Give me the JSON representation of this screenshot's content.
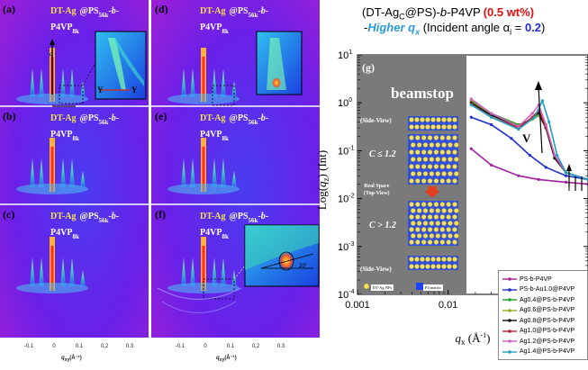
{
  "gisaxs": {
    "panels": [
      {
        "id": "a",
        "label": "(a)",
        "line1": "DT-Ag",
        "line1b": "@PS",
        "line2": "P4VP"
      },
      {
        "id": "b",
        "label": "(b)",
        "line1": "DT-Ag",
        "line1b": "@PS",
        "line2": "P4VP"
      },
      {
        "id": "c",
        "label": "(c)",
        "line1": "DT-Ag",
        "line1b": "@PS",
        "line2": "P4VP"
      },
      {
        "id": "d",
        "label": "(d)",
        "line1": "DT-Ag",
        "line1b": "@PS",
        "line2": "P4VP"
      },
      {
        "id": "e",
        "label": "(e)",
        "line1": "DT-Ag",
        "line1b": "@PS",
        "line2": "P4VP"
      },
      {
        "id": "f",
        "label": "(f)",
        "line1": "DT-Ag",
        "line1b": "@PS",
        "line2": "P4VP"
      }
    ],
    "sub1": "56k",
    "sub2": "8k",
    "inset_a_labels": [
      "Y",
      "Y"
    ],
    "inset_f_angle": "20°",
    "x_ticks": [
      "-0.1",
      "0",
      "0.1",
      "0.2",
      "0.3"
    ],
    "x_axis_label": "q",
    "x_axis_sub": "xy",
    "x_axis_unit": "(Å⁻¹)"
  },
  "schematic": {
    "label": "(g)",
    "beamstop": "beamstop",
    "side_view_top": "(Side-View)",
    "c_le": "C ≤ 1.2",
    "real_space_1": "Real Space",
    "real_space_2": "(Top-View)",
    "c_gt": "C > 1.2",
    "side_view_bottom": "(Side-View)",
    "legend_np": "DT-Ag NPs",
    "legend_matrix": "P4 matrix"
  },
  "plot_title": {
    "line1_pre": "(DT-Ag",
    "line1_sub": "C",
    "line1_mid": "@PS)-",
    "line1_b": "b",
    "line1_post": "-P4VP",
    "line1_pct": "(0.5 wt%)",
    "line2_dash": "-",
    "line2_higher": "Higher q",
    "line2_higher_sub": "x",
    "line2_rest": "(Incident angle α",
    "line2_rest_sub": "i",
    "line2_eq": " = ",
    "line2_val": "0.2",
    "line2_close": ")"
  },
  "annotations": {
    "v_label": "V"
  },
  "chart_data": {
    "type": "line",
    "title": "",
    "xlabel": "q_x (Å⁻¹)",
    "ylabel": "Log(q_z) (Int)",
    "xscale": "log",
    "yscale": "log",
    "xlim": [
      0.001,
      0.35
    ],
    "ylim": [
      0.0001,
      10
    ],
    "x_ticks": [
      "0.001",
      "0.01",
      "0.1"
    ],
    "y_ticks": [
      "10",
      "10",
      "10",
      "10",
      "10",
      "10"
    ],
    "y_tick_exps": [
      "1",
      "0",
      "-1",
      "-2",
      "-3",
      "-4"
    ],
    "legend_position": "bottom-right",
    "series": [
      {
        "name": "PS-b-P4VP",
        "color": "#a020a0",
        "points": [
          [
            0.018,
            0.11
          ],
          [
            0.03,
            0.05
          ],
          [
            0.06,
            0.03
          ],
          [
            0.1,
            0.025
          ],
          [
            0.2,
            0.022
          ],
          [
            0.35,
            0.02
          ]
        ]
      },
      {
        "name": "PS-b-Au1.0@P4VP",
        "color": "#2030d0",
        "points": [
          [
            0.018,
            0.5
          ],
          [
            0.03,
            0.35
          ],
          [
            0.05,
            0.18
          ],
          [
            0.08,
            0.08
          ],
          [
            0.12,
            0.045
          ],
          [
            0.2,
            0.03
          ],
          [
            0.35,
            0.025
          ]
        ]
      },
      {
        "name": "Ag0.4@PS-b-P4VP",
        "color": "#20a020",
        "points": [
          [
            0.018,
            1.1
          ],
          [
            0.03,
            0.6
          ],
          [
            0.06,
            0.35
          ],
          [
            0.085,
            0.45
          ],
          [
            0.1,
            0.55
          ],
          [
            0.12,
            0.3
          ],
          [
            0.15,
            0.07
          ],
          [
            0.2,
            0.035
          ],
          [
            0.35,
            0.025
          ]
        ]
      },
      {
        "name": "Ag0.6@PS-b-P4VP",
        "color": "#90b020",
        "points": [
          [
            0.018,
            1.05
          ],
          [
            0.03,
            0.58
          ],
          [
            0.06,
            0.33
          ],
          [
            0.085,
            0.45
          ],
          [
            0.1,
            0.58
          ],
          [
            0.12,
            0.3
          ],
          [
            0.15,
            0.07
          ],
          [
            0.2,
            0.035
          ],
          [
            0.35,
            0.025
          ]
        ]
      },
      {
        "name": "Ag0.8@PS-b-P4VP",
        "color": "#111111",
        "points": [
          [
            0.018,
            1.0
          ],
          [
            0.03,
            0.55
          ],
          [
            0.06,
            0.32
          ],
          [
            0.085,
            0.48
          ],
          [
            0.1,
            0.62
          ],
          [
            0.12,
            0.3
          ],
          [
            0.15,
            0.07
          ],
          [
            0.2,
            0.035
          ],
          [
            0.35,
            0.025
          ]
        ]
      },
      {
        "name": "Ag1.0@PS-b-P4VP",
        "color": "#c02030",
        "points": [
          [
            0.018,
            0.95
          ],
          [
            0.03,
            0.5
          ],
          [
            0.06,
            0.3
          ],
          [
            0.085,
            0.5
          ],
          [
            0.1,
            0.7
          ],
          [
            0.12,
            0.32
          ],
          [
            0.15,
            0.08
          ],
          [
            0.2,
            0.035
          ],
          [
            0.35,
            0.025
          ]
        ]
      },
      {
        "name": "Ag1.2@PS-b-P4VP",
        "color": "#d060c0",
        "points": [
          [
            0.018,
            1.2
          ],
          [
            0.03,
            0.6
          ],
          [
            0.06,
            0.32
          ],
          [
            0.085,
            0.6
          ],
          [
            0.1,
            0.9
          ],
          [
            0.12,
            0.35
          ],
          [
            0.15,
            0.08
          ],
          [
            0.2,
            0.035
          ],
          [
            0.35,
            0.025
          ]
        ]
      },
      {
        "name": "Ag1.4@PS-b-P4VP",
        "color": "#20a0c0",
        "points": [
          [
            0.018,
            0.9
          ],
          [
            0.03,
            0.5
          ],
          [
            0.06,
            0.28
          ],
          [
            0.09,
            0.5
          ],
          [
            0.11,
            1.1
          ],
          [
            0.13,
            0.4
          ],
          [
            0.16,
            0.08
          ],
          [
            0.2,
            0.035
          ],
          [
            0.35,
            0.025
          ]
        ]
      }
    ]
  }
}
